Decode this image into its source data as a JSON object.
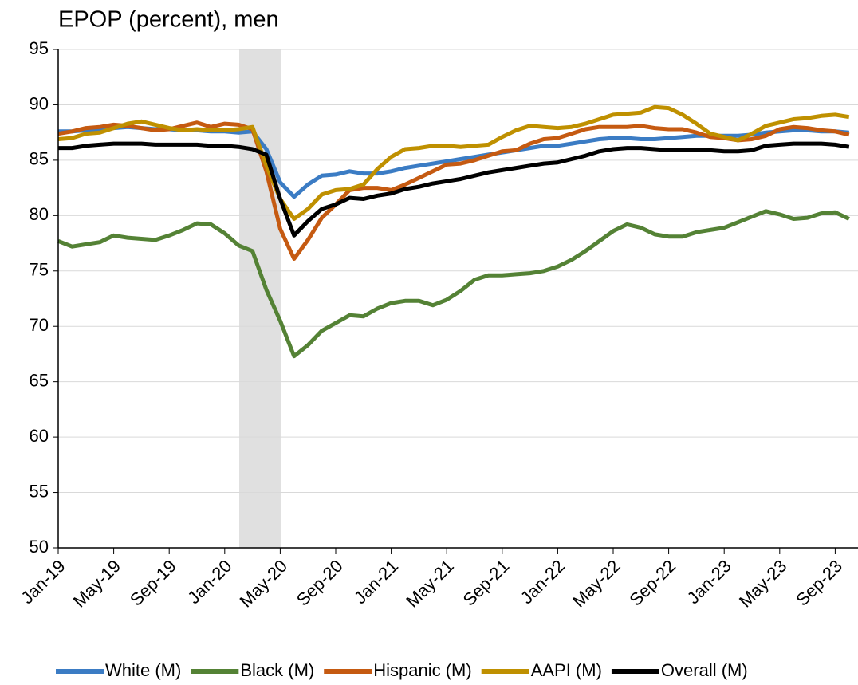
{
  "chart_data": {
    "type": "line",
    "title": "EPOP (percent), men",
    "categories": [
      "Jan-19",
      null,
      null,
      null,
      "May-19",
      null,
      null,
      null,
      "Sep-19",
      null,
      null,
      null,
      "Jan-20",
      null,
      null,
      null,
      "May-20",
      null,
      null,
      null,
      "Sep-20",
      null,
      null,
      null,
      "Jan-21",
      null,
      null,
      null,
      "May-21",
      null,
      null,
      null,
      "Sep-21",
      null,
      null,
      null,
      "Jan-22",
      null,
      null,
      null,
      "May-22",
      null,
      null,
      null,
      "Sep-22",
      null,
      null,
      null,
      "Jan-23",
      null,
      null,
      null,
      "May-23",
      null,
      null,
      null,
      "Sep-23",
      null
    ],
    "series": [
      {
        "name": "White (M)",
        "color": "#3b7cc4",
        "values": [
          87.6,
          87.6,
          87.7,
          87.8,
          87.9,
          88.0,
          87.9,
          87.8,
          87.8,
          87.7,
          87.7,
          87.6,
          87.6,
          87.5,
          87.6,
          86.0,
          83.0,
          81.7,
          82.8,
          83.6,
          83.7,
          84.0,
          83.8,
          83.8,
          84.0,
          84.3,
          84.5,
          84.7,
          84.9,
          85.1,
          85.3,
          85.5,
          85.7,
          85.9,
          86.1,
          86.3,
          86.3,
          86.5,
          86.7,
          86.9,
          87.0,
          87.0,
          86.9,
          86.9,
          87.0,
          87.1,
          87.2,
          87.2,
          87.2,
          87.2,
          87.3,
          87.5,
          87.6,
          87.7,
          87.7,
          87.6,
          87.6,
          87.5
        ]
      },
      {
        "name": "Black (M)",
        "color": "#548235",
        "values": [
          77.7,
          77.2,
          77.4,
          77.6,
          78.2,
          78.0,
          77.9,
          77.8,
          78.2,
          78.7,
          79.3,
          79.2,
          78.4,
          77.3,
          76.8,
          73.3,
          70.5,
          67.3,
          68.3,
          69.6,
          70.3,
          71.0,
          70.9,
          71.6,
          72.1,
          72.3,
          72.3,
          71.9,
          72.4,
          73.2,
          74.2,
          74.6,
          74.6,
          74.7,
          74.8,
          75.0,
          75.4,
          76.0,
          76.8,
          77.7,
          78.6,
          79.2,
          78.9,
          78.3,
          78.1,
          78.1,
          78.5,
          78.7,
          78.9,
          79.4,
          79.9,
          80.4,
          80.1,
          79.7,
          79.8,
          80.2,
          80.3,
          79.7
        ]
      },
      {
        "name": "Hispanic (M)",
        "color": "#c55a11",
        "values": [
          87.4,
          87.6,
          87.9,
          88.0,
          88.2,
          88.1,
          87.9,
          87.7,
          87.8,
          88.1,
          88.4,
          88.0,
          88.3,
          88.2,
          87.8,
          84.0,
          78.8,
          76.1,
          77.8,
          79.8,
          81.0,
          82.3,
          82.5,
          82.5,
          82.3,
          82.8,
          83.4,
          84.0,
          84.6,
          84.7,
          85.0,
          85.4,
          85.8,
          85.9,
          86.5,
          86.9,
          87.0,
          87.4,
          87.8,
          88.0,
          88.0,
          88.0,
          88.1,
          87.9,
          87.8,
          87.8,
          87.5,
          87.1,
          87.0,
          86.8,
          86.9,
          87.2,
          87.8,
          88.0,
          87.9,
          87.7,
          87.6,
          87.3
        ]
      },
      {
        "name": "AAPI (M)",
        "color": "#bf9000",
        "values": [
          86.9,
          87.0,
          87.4,
          87.5,
          87.9,
          88.3,
          88.5,
          88.2,
          87.9,
          87.7,
          87.8,
          87.7,
          87.7,
          87.8,
          88.0,
          84.5,
          81.5,
          79.7,
          80.6,
          81.9,
          82.3,
          82.4,
          82.8,
          84.2,
          85.3,
          86.0,
          86.1,
          86.3,
          86.3,
          86.2,
          86.3,
          86.4,
          87.1,
          87.7,
          88.1,
          88.0,
          87.9,
          88.0,
          88.3,
          88.7,
          89.1,
          89.2,
          89.3,
          89.8,
          89.7,
          89.1,
          88.3,
          87.4,
          87.1,
          86.8,
          87.4,
          88.1,
          88.4,
          88.7,
          88.8,
          89.0,
          89.1,
          88.9
        ]
      },
      {
        "name": "Overall (M)",
        "color": "#000000",
        "values": [
          86.1,
          86.1,
          86.3,
          86.4,
          86.5,
          86.5,
          86.5,
          86.4,
          86.4,
          86.4,
          86.4,
          86.3,
          86.3,
          86.2,
          86.0,
          85.5,
          81.5,
          78.2,
          79.5,
          80.6,
          81.0,
          81.6,
          81.5,
          81.8,
          82.0,
          82.4,
          82.6,
          82.9,
          83.1,
          83.3,
          83.6,
          83.9,
          84.1,
          84.3,
          84.5,
          84.7,
          84.8,
          85.1,
          85.4,
          85.8,
          86.0,
          86.1,
          86.1,
          86.0,
          85.9,
          85.9,
          85.9,
          85.9,
          85.8,
          85.8,
          85.9,
          86.3,
          86.4,
          86.5,
          86.5,
          86.5,
          86.4,
          86.2
        ]
      }
    ],
    "ylim": [
      50,
      95
    ],
    "yticks": [
      50,
      55,
      60,
      65,
      70,
      75,
      80,
      85,
      90,
      95
    ],
    "grid": true,
    "legend": "bottom"
  }
}
